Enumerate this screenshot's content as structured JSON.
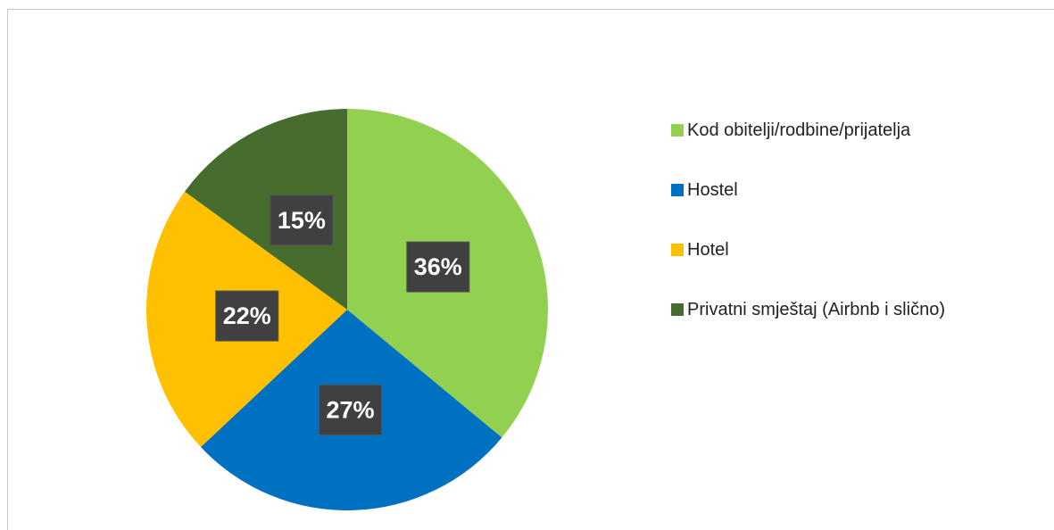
{
  "chart_data": {
    "type": "pie",
    "categories": [
      "Kod obitelji/rodbine/prijatelja",
      "Hostel",
      "Hotel",
      "Privatni smještaj (Airbnb i slično)"
    ],
    "values": [
      36,
      27,
      22,
      15
    ],
    "value_labels": [
      "36%",
      "27%",
      "22%",
      "15%"
    ],
    "colors": [
      "#92d050",
      "#0070c0",
      "#ffc000",
      "#466d2e"
    ],
    "legend": "right"
  }
}
